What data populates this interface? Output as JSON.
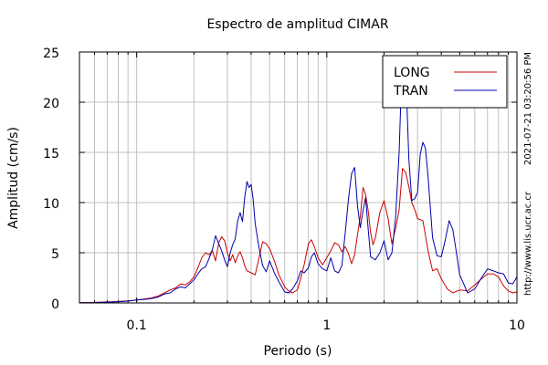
{
  "chart_data": {
    "type": "line",
    "title": "Espectro de amplitud CIMAR",
    "xlabel": "Periodo (s)",
    "ylabel": "Amplitud (cm/s)",
    "x_scale": "log",
    "xlim": [
      0.05,
      10
    ],
    "ylim": [
      0,
      25
    ],
    "x_ticks": [
      0.1,
      1,
      10
    ],
    "x_tick_labels": [
      "0.1",
      "1",
      "10"
    ],
    "y_ticks": [
      0,
      5,
      10,
      15,
      20,
      25
    ],
    "y_tick_labels": [
      "0",
      "5",
      "10",
      "15",
      "20",
      "25"
    ],
    "grid": true,
    "legend_position": "top-right",
    "side_text_timestamp": "2021-07-21 03:20:56 PM",
    "side_text_url": "http://www.lis.ucr.ac.cr",
    "series": [
      {
        "name": "LONG",
        "color": "#cc0000",
        "points": [
          [
            0.05,
            0.02
          ],
          [
            0.06,
            0.05
          ],
          [
            0.07,
            0.1
          ],
          [
            0.08,
            0.15
          ],
          [
            0.09,
            0.2
          ],
          [
            0.1,
            0.3
          ],
          [
            0.11,
            0.4
          ],
          [
            0.12,
            0.5
          ],
          [
            0.13,
            0.7
          ],
          [
            0.14,
            1.0
          ],
          [
            0.15,
            1.3
          ],
          [
            0.16,
            1.5
          ],
          [
            0.17,
            1.9
          ],
          [
            0.18,
            1.8
          ],
          [
            0.19,
            2.1
          ],
          [
            0.2,
            2.6
          ],
          [
            0.21,
            3.5
          ],
          [
            0.22,
            4.5
          ],
          [
            0.23,
            5.0
          ],
          [
            0.24,
            4.8
          ],
          [
            0.25,
            5.2
          ],
          [
            0.26,
            4.2
          ],
          [
            0.27,
            6.0
          ],
          [
            0.28,
            6.6
          ],
          [
            0.29,
            6.2
          ],
          [
            0.3,
            5.0
          ],
          [
            0.31,
            4.2
          ],
          [
            0.32,
            4.8
          ],
          [
            0.33,
            4.0
          ],
          [
            0.34,
            4.7
          ],
          [
            0.35,
            5.1
          ],
          [
            0.36,
            4.5
          ],
          [
            0.37,
            3.7
          ],
          [
            0.38,
            3.2
          ],
          [
            0.4,
            3.0
          ],
          [
            0.42,
            2.8
          ],
          [
            0.44,
            4.5
          ],
          [
            0.46,
            6.1
          ],
          [
            0.48,
            5.9
          ],
          [
            0.5,
            5.4
          ],
          [
            0.53,
            4.2
          ],
          [
            0.56,
            2.8
          ],
          [
            0.6,
            1.6
          ],
          [
            0.63,
            1.2
          ],
          [
            0.66,
            1.0
          ],
          [
            0.7,
            1.3
          ],
          [
            0.73,
            2.5
          ],
          [
            0.76,
            3.8
          ],
          [
            0.8,
            5.9
          ],
          [
            0.83,
            6.3
          ],
          [
            0.86,
            5.6
          ],
          [
            0.9,
            4.5
          ],
          [
            0.95,
            3.8
          ],
          [
            1.0,
            4.5
          ],
          [
            1.05,
            5.2
          ],
          [
            1.1,
            6.0
          ],
          [
            1.15,
            5.8
          ],
          [
            1.2,
            5.1
          ],
          [
            1.25,
            5.6
          ],
          [
            1.3,
            4.9
          ],
          [
            1.35,
            3.9
          ],
          [
            1.4,
            4.8
          ],
          [
            1.45,
            6.8
          ],
          [
            1.5,
            8.6
          ],
          [
            1.55,
            11.5
          ],
          [
            1.6,
            10.8
          ],
          [
            1.65,
            9.2
          ],
          [
            1.7,
            7.0
          ],
          [
            1.75,
            5.8
          ],
          [
            1.8,
            6.5
          ],
          [
            1.9,
            9.0
          ],
          [
            2.0,
            10.2
          ],
          [
            2.1,
            8.4
          ],
          [
            2.2,
            5.9
          ],
          [
            2.3,
            7.4
          ],
          [
            2.4,
            9.3
          ],
          [
            2.5,
            13.4
          ],
          [
            2.6,
            13.0
          ],
          [
            2.7,
            11.6
          ],
          [
            2.8,
            10.0
          ],
          [
            2.9,
            9.3
          ],
          [
            3.0,
            8.4
          ],
          [
            3.2,
            8.2
          ],
          [
            3.4,
            5.3
          ],
          [
            3.6,
            3.2
          ],
          [
            3.8,
            3.4
          ],
          [
            4.0,
            2.4
          ],
          [
            4.3,
            1.4
          ],
          [
            4.6,
            1.0
          ],
          [
            5.0,
            1.3
          ],
          [
            5.5,
            1.2
          ],
          [
            6.0,
            1.8
          ],
          [
            6.5,
            2.4
          ],
          [
            7.0,
            2.9
          ],
          [
            7.5,
            2.9
          ],
          [
            8.0,
            2.6
          ],
          [
            8.5,
            1.7
          ],
          [
            9.0,
            1.2
          ],
          [
            9.5,
            1.0
          ],
          [
            10.0,
            1.1
          ]
        ]
      },
      {
        "name": "TRAN",
        "color": "#0000aa",
        "points": [
          [
            0.05,
            0.02
          ],
          [
            0.06,
            0.04
          ],
          [
            0.07,
            0.08
          ],
          [
            0.08,
            0.12
          ],
          [
            0.09,
            0.18
          ],
          [
            0.1,
            0.3
          ],
          [
            0.11,
            0.35
          ],
          [
            0.12,
            0.45
          ],
          [
            0.13,
            0.6
          ],
          [
            0.14,
            0.9
          ],
          [
            0.15,
            1.0
          ],
          [
            0.16,
            1.4
          ],
          [
            0.17,
            1.6
          ],
          [
            0.18,
            1.5
          ],
          [
            0.19,
            1.9
          ],
          [
            0.2,
            2.3
          ],
          [
            0.21,
            2.9
          ],
          [
            0.22,
            3.4
          ],
          [
            0.23,
            3.6
          ],
          [
            0.24,
            4.4
          ],
          [
            0.25,
            5.3
          ],
          [
            0.26,
            6.7
          ],
          [
            0.27,
            5.9
          ],
          [
            0.28,
            5.2
          ],
          [
            0.29,
            4.3
          ],
          [
            0.3,
            3.6
          ],
          [
            0.31,
            5.0
          ],
          [
            0.32,
            5.8
          ],
          [
            0.33,
            6.4
          ],
          [
            0.34,
            8.2
          ],
          [
            0.35,
            9.0
          ],
          [
            0.36,
            8.1
          ],
          [
            0.37,
            10.5
          ],
          [
            0.38,
            12.1
          ],
          [
            0.39,
            11.5
          ],
          [
            0.4,
            11.8
          ],
          [
            0.41,
            10.3
          ],
          [
            0.42,
            7.9
          ],
          [
            0.44,
            5.5
          ],
          [
            0.46,
            3.7
          ],
          [
            0.48,
            3.1
          ],
          [
            0.5,
            4.2
          ],
          [
            0.53,
            3.0
          ],
          [
            0.56,
            2.1
          ],
          [
            0.6,
            1.1
          ],
          [
            0.63,
            1.0
          ],
          [
            0.66,
            1.4
          ],
          [
            0.7,
            2.2
          ],
          [
            0.73,
            3.2
          ],
          [
            0.76,
            3.0
          ],
          [
            0.8,
            3.5
          ],
          [
            0.83,
            4.6
          ],
          [
            0.86,
            5.0
          ],
          [
            0.9,
            3.9
          ],
          [
            0.95,
            3.4
          ],
          [
            1.0,
            3.2
          ],
          [
            1.05,
            4.5
          ],
          [
            1.1,
            3.2
          ],
          [
            1.15,
            3.0
          ],
          [
            1.2,
            3.7
          ],
          [
            1.25,
            7.0
          ],
          [
            1.3,
            10.4
          ],
          [
            1.35,
            12.9
          ],
          [
            1.4,
            13.5
          ],
          [
            1.45,
            9.7
          ],
          [
            1.5,
            7.5
          ],
          [
            1.55,
            9.2
          ],
          [
            1.6,
            10.5
          ],
          [
            1.65,
            7.4
          ],
          [
            1.7,
            4.6
          ],
          [
            1.8,
            4.3
          ],
          [
            1.9,
            5.0
          ],
          [
            2.0,
            6.2
          ],
          [
            2.1,
            4.3
          ],
          [
            2.2,
            5.0
          ],
          [
            2.3,
            8.5
          ],
          [
            2.4,
            15.0
          ],
          [
            2.45,
            20.0
          ],
          [
            2.5,
            22.8
          ],
          [
            2.55,
            24.2
          ],
          [
            2.6,
            23.4
          ],
          [
            2.7,
            14.4
          ],
          [
            2.8,
            10.2
          ],
          [
            2.9,
            10.4
          ],
          [
            3.0,
            11.0
          ],
          [
            3.1,
            14.8
          ],
          [
            3.2,
            16.0
          ],
          [
            3.3,
            15.4
          ],
          [
            3.4,
            12.8
          ],
          [
            3.6,
            6.5
          ],
          [
            3.8,
            4.7
          ],
          [
            4.0,
            4.6
          ],
          [
            4.2,
            6.3
          ],
          [
            4.4,
            8.2
          ],
          [
            4.6,
            7.3
          ],
          [
            4.8,
            5.1
          ],
          [
            5.0,
            2.8
          ],
          [
            5.5,
            1.0
          ],
          [
            6.0,
            1.4
          ],
          [
            6.5,
            2.5
          ],
          [
            7.0,
            3.4
          ],
          [
            7.5,
            3.2
          ],
          [
            8.0,
            3.0
          ],
          [
            8.5,
            2.9
          ],
          [
            9.0,
            2.0
          ],
          [
            9.5,
            1.9
          ],
          [
            10.0,
            2.6
          ]
        ]
      }
    ]
  }
}
